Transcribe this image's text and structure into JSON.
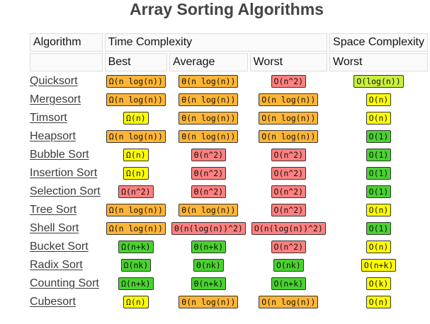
{
  "title": "Array Sorting Algorithms",
  "header": {
    "algorithm": "Algorithm",
    "time_complexity": "Time Complexity",
    "space_complexity": "Space Complexity",
    "best": "Best",
    "average": "Average",
    "worst": "Worst",
    "space_worst": "Worst"
  },
  "quality_colors": {
    "good": "#4ad230",
    "fair": "#ffff00",
    "bad": "#ffb536",
    "poor": "#ff8080",
    "lime": "#c8f03c"
  },
  "rows": [
    {
      "name": "Quicksort",
      "best": {
        "text": "Ω(n log(n))",
        "q": "bad"
      },
      "average": {
        "text": "Θ(n log(n))",
        "q": "bad"
      },
      "worst": {
        "text": "O(n^2)",
        "q": "poor"
      },
      "space": {
        "text": "O(log(n))",
        "q": "lime"
      }
    },
    {
      "name": "Mergesort",
      "best": {
        "text": "Ω(n log(n))",
        "q": "bad"
      },
      "average": {
        "text": "Θ(n log(n))",
        "q": "bad"
      },
      "worst": {
        "text": "O(n log(n))",
        "q": "bad"
      },
      "space": {
        "text": "O(n)",
        "q": "fair"
      }
    },
    {
      "name": "Timsort",
      "best": {
        "text": "Ω(n)",
        "q": "fair"
      },
      "average": {
        "text": "Θ(n log(n))",
        "q": "bad"
      },
      "worst": {
        "text": "O(n log(n))",
        "q": "bad"
      },
      "space": {
        "text": "O(n)",
        "q": "fair"
      }
    },
    {
      "name": "Heapsort",
      "best": {
        "text": "Ω(n log(n))",
        "q": "bad"
      },
      "average": {
        "text": "Θ(n log(n))",
        "q": "bad"
      },
      "worst": {
        "text": "O(n log(n))",
        "q": "bad"
      },
      "space": {
        "text": "O(1)",
        "q": "good"
      }
    },
    {
      "name": "Bubble Sort",
      "best": {
        "text": "Ω(n)",
        "q": "fair"
      },
      "average": {
        "text": "Θ(n^2)",
        "q": "poor"
      },
      "worst": {
        "text": "O(n^2)",
        "q": "poor"
      },
      "space": {
        "text": "O(1)",
        "q": "good"
      }
    },
    {
      "name": "Insertion Sort",
      "best": {
        "text": "Ω(n)",
        "q": "fair"
      },
      "average": {
        "text": "Θ(n^2)",
        "q": "poor"
      },
      "worst": {
        "text": "O(n^2)",
        "q": "poor"
      },
      "space": {
        "text": "O(1)",
        "q": "good"
      }
    },
    {
      "name": "Selection Sort",
      "best": {
        "text": "Ω(n^2)",
        "q": "poor"
      },
      "average": {
        "text": "Θ(n^2)",
        "q": "poor"
      },
      "worst": {
        "text": "O(n^2)",
        "q": "poor"
      },
      "space": {
        "text": "O(1)",
        "q": "good"
      }
    },
    {
      "name": "Tree Sort",
      "best": {
        "text": "Ω(n log(n))",
        "q": "bad"
      },
      "average": {
        "text": "Θ(n log(n))",
        "q": "bad"
      },
      "worst": {
        "text": "O(n^2)",
        "q": "poor"
      },
      "space": {
        "text": "O(n)",
        "q": "fair"
      }
    },
    {
      "name": "Shell Sort",
      "best": {
        "text": "Ω(n log(n))",
        "q": "bad"
      },
      "average": {
        "text": "Θ(n(log(n))^2)",
        "q": "poor"
      },
      "worst": {
        "text": "O(n(log(n))^2)",
        "q": "poor"
      },
      "space": {
        "text": "O(1)",
        "q": "good"
      }
    },
    {
      "name": "Bucket Sort",
      "best": {
        "text": "Ω(n+k)",
        "q": "good"
      },
      "average": {
        "text": "Θ(n+k)",
        "q": "good"
      },
      "worst": {
        "text": "O(n^2)",
        "q": "poor"
      },
      "space": {
        "text": "O(n)",
        "q": "fair"
      }
    },
    {
      "name": "Radix Sort",
      "best": {
        "text": "Ω(nk)",
        "q": "good"
      },
      "average": {
        "text": "Θ(nk)",
        "q": "good"
      },
      "worst": {
        "text": "O(nk)",
        "q": "good"
      },
      "space": {
        "text": "O(n+k)",
        "q": "fair"
      }
    },
    {
      "name": "Counting Sort",
      "best": {
        "text": "Ω(n+k)",
        "q": "good"
      },
      "average": {
        "text": "Θ(n+k)",
        "q": "good"
      },
      "worst": {
        "text": "O(n+k)",
        "q": "good"
      },
      "space": {
        "text": "O(k)",
        "q": "fair"
      }
    },
    {
      "name": "Cubesort",
      "best": {
        "text": "Ω(n)",
        "q": "fair"
      },
      "average": {
        "text": "Θ(n log(n))",
        "q": "bad"
      },
      "worst": {
        "text": "O(n log(n))",
        "q": "bad"
      },
      "space": {
        "text": "O(n)",
        "q": "fair"
      }
    }
  ]
}
